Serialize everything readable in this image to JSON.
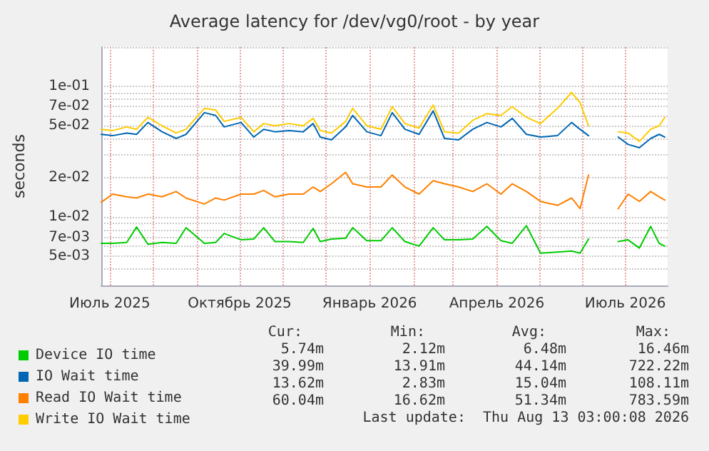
{
  "chart_data": {
    "type": "line",
    "title": "Average latency for /dev/vg0/root - by year",
    "ylabel": "seconds",
    "x": [
      "2025-06-25",
      "2025-07-03",
      "2025-07-13",
      "2025-07-20",
      "2025-07-28",
      "2025-08-07",
      "2025-08-17",
      "2025-08-24",
      "2025-09-06",
      "2025-09-14",
      "2025-09-20",
      "2025-10-02",
      "2025-10-11",
      "2025-10-18",
      "2025-10-26",
      "2025-11-05",
      "2025-11-15",
      "2025-11-22",
      "2025-11-27",
      "2025-12-05",
      "2025-12-15",
      "2025-12-20",
      "2025-12-30",
      "2026-01-09",
      "2026-01-17",
      "2026-01-26",
      "2026-02-05",
      "2026-02-15",
      "2026-02-23",
      "2026-03-05",
      "2026-03-15",
      "2026-03-25",
      "2026-04-04",
      "2026-04-12",
      "2026-04-22",
      "2026-05-02",
      "2026-05-14",
      "2026-05-24",
      "2026-05-30",
      "2026-06-05",
      "2026-06-15",
      "2026-06-26",
      "2026-07-03",
      "2026-07-11",
      "2026-07-19",
      "2026-07-25",
      "2026-07-29"
    ],
    "series": [
      {
        "name": "Device IO time",
        "color": "#00cc00",
        "values": [
          0.0063,
          0.0063,
          0.0064,
          0.0084,
          0.0062,
          0.0064,
          0.0063,
          0.0083,
          0.0063,
          0.0064,
          0.0075,
          0.0067,
          0.0068,
          0.0083,
          0.0065,
          0.0065,
          0.0064,
          0.0082,
          0.0065,
          0.0068,
          0.0069,
          0.0083,
          0.0066,
          0.0066,
          0.0083,
          0.0065,
          0.006,
          0.0083,
          0.0067,
          0.0067,
          0.0068,
          0.0085,
          0.0066,
          0.0063,
          0.0086,
          0.0053,
          0.0054,
          0.0055,
          0.0053,
          0.0068,
          null,
          0.0065,
          0.0067,
          0.0058,
          0.0085,
          0.0063,
          0.006
        ]
      },
      {
        "name": "IO Wait time",
        "color": "#0066b3",
        "values": [
          0.043,
          0.042,
          0.044,
          0.043,
          0.053,
          0.045,
          0.04,
          0.043,
          0.063,
          0.06,
          0.049,
          0.053,
          0.041,
          0.047,
          0.045,
          0.046,
          0.045,
          0.052,
          0.041,
          0.039,
          0.049,
          0.06,
          0.045,
          0.042,
          0.063,
          0.047,
          0.043,
          0.065,
          0.04,
          0.039,
          0.047,
          0.053,
          0.049,
          0.057,
          0.043,
          0.041,
          0.042,
          0.053,
          0.047,
          0.042,
          null,
          0.041,
          0.036,
          0.034,
          0.04,
          0.043,
          0.041
        ]
      },
      {
        "name": "Read IO Wait time",
        "color": "#ff8000",
        "values": [
          0.013,
          0.015,
          0.0143,
          0.014,
          0.015,
          0.0143,
          0.0157,
          0.014,
          0.0126,
          0.014,
          0.0135,
          0.015,
          0.015,
          0.016,
          0.0143,
          0.015,
          0.015,
          0.017,
          0.0157,
          0.018,
          0.022,
          0.018,
          0.017,
          0.017,
          0.021,
          0.017,
          0.015,
          0.019,
          0.018,
          0.017,
          0.0157,
          0.018,
          0.015,
          0.018,
          0.0157,
          0.0132,
          0.0123,
          0.014,
          0.0116,
          0.021,
          null,
          0.0116,
          0.015,
          0.0132,
          0.0157,
          0.0143,
          0.0135
        ]
      },
      {
        "name": "Write IO Wait time",
        "color": "#ffcc00",
        "values": [
          0.047,
          0.046,
          0.049,
          0.047,
          0.058,
          0.05,
          0.044,
          0.047,
          0.068,
          0.066,
          0.054,
          0.058,
          0.045,
          0.052,
          0.05,
          0.052,
          0.05,
          0.057,
          0.046,
          0.044,
          0.054,
          0.068,
          0.05,
          0.047,
          0.07,
          0.052,
          0.048,
          0.072,
          0.045,
          0.044,
          0.055,
          0.062,
          0.06,
          0.07,
          0.058,
          0.052,
          0.068,
          0.09,
          0.075,
          0.05,
          null,
          0.045,
          0.044,
          0.038,
          0.047,
          0.05,
          0.058
        ]
      }
    ],
    "log": true,
    "grid": true,
    "legend": "bottom left",
    "marker": "none",
    "line_style": "solid",
    "xlim": [
      "2025-06-25",
      "2026-07-31"
    ],
    "xticks": [
      {
        "value": "2025-07-01",
        "label": "Июль 2025"
      },
      {
        "value": "2025-08-01",
        "label": null
      },
      {
        "value": "2025-09-01",
        "label": null
      },
      {
        "value": "2025-10-01",
        "label": "Октябрь 2025"
      },
      {
        "value": "2025-11-01",
        "label": null
      },
      {
        "value": "2025-12-01",
        "label": null
      },
      {
        "value": "2026-01-01",
        "label": "Январь 2026"
      },
      {
        "value": "2026-02-01",
        "label": null
      },
      {
        "value": "2026-03-01",
        "label": null
      },
      {
        "value": "2026-04-01",
        "label": "Апрель 2026"
      },
      {
        "value": "2026-05-01",
        "label": null
      },
      {
        "value": "2026-06-01",
        "label": null
      },
      {
        "value": "2026-07-01",
        "label": "Июль 2026"
      }
    ],
    "ylim": [
      0.003,
      0.2
    ],
    "yticks": [
      {
        "value": 0.003,
        "label": null
      },
      {
        "value": 0.004,
        "label": null
      },
      {
        "value": 0.005,
        "label": "5e-03"
      },
      {
        "value": 0.006,
        "label": null
      },
      {
        "value": 0.007,
        "label": "7e-03"
      },
      {
        "value": 0.008,
        "label": null
      },
      {
        "value": 0.009,
        "label": null
      },
      {
        "value": 0.01,
        "label": "1e-02"
      },
      {
        "value": 0.02,
        "label": "2e-02"
      },
      {
        "value": 0.03,
        "label": null
      },
      {
        "value": 0.04,
        "label": null
      },
      {
        "value": 0.05,
        "label": "5e-02"
      },
      {
        "value": 0.06,
        "label": null
      },
      {
        "value": 0.07,
        "label": "7e-02"
      },
      {
        "value": 0.08,
        "label": null
      },
      {
        "value": 0.09,
        "label": null
      },
      {
        "value": 0.1,
        "label": "1e-01"
      },
      {
        "value": 0.2,
        "label": null
      }
    ],
    "annotations": [
      "Cur:",
      "Min:",
      "Avg:",
      "Max:",
      "5.74m",
      "2.12m",
      "6.48m",
      "16.46m",
      "39.99m",
      "13.91m",
      "44.14m",
      "722.22m",
      "13.62m",
      "2.83m",
      "15.04m",
      "108.11m",
      "60.04m",
      "16.62m",
      "51.34m",
      "783.59m",
      "Last update:  Thu Aug 13 03:00:08 2026"
    ]
  }
}
